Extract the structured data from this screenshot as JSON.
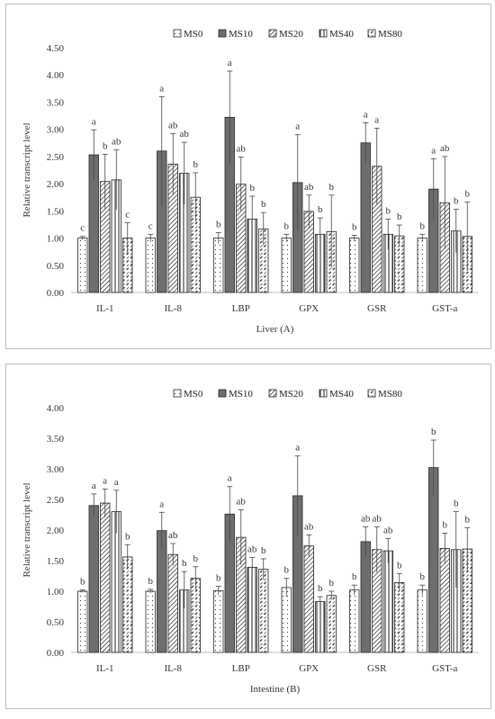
{
  "legend": [
    "MS0",
    "MS10",
    "MS20",
    "MS40",
    "MS80"
  ],
  "chart_data": [
    {
      "type": "bar",
      "title": "",
      "xlabel": "Liver (A)",
      "ylabel": "Relative transcript level",
      "ylim": [
        0,
        4.5
      ],
      "ytick_step": 0.5,
      "ytick_labels": [
        "0.00",
        "0.50",
        "1.00",
        "1.50",
        "2.00",
        "2.50",
        "3.00",
        "3.50",
        "4.00",
        "4.50"
      ],
      "grid": false,
      "legend_position": "top",
      "categories": [
        "IL-1",
        "IL-8",
        "LBP",
        "GPX",
        "GSR",
        "GST-a"
      ],
      "series": [
        {
          "name": "MS0",
          "values": [
            1.0,
            1.0,
            1.0,
            1.0,
            1.0,
            1.0
          ],
          "errors": [
            0.03,
            0.07,
            0.1,
            0.07,
            0.05,
            0.07
          ],
          "letters": [
            "c",
            "c",
            "b",
            "b",
            "b",
            "b"
          ]
        },
        {
          "name": "MS10",
          "values": [
            2.53,
            2.6,
            3.22,
            2.02,
            2.75,
            1.9
          ],
          "errors": [
            0.46,
            1.0,
            0.85,
            0.88,
            0.37,
            0.56
          ],
          "letters": [
            "a",
            "a",
            "a",
            "a",
            "a",
            "a"
          ]
        },
        {
          "name": "MS20",
          "values": [
            2.04,
            2.36,
            1.99,
            1.49,
            2.32,
            1.65
          ],
          "errors": [
            0.5,
            0.56,
            0.5,
            0.3,
            0.7,
            0.85
          ],
          "letters": [
            "b",
            "ab",
            "ab",
            "ab",
            "a",
            "ab"
          ]
        },
        {
          "name": "MS40",
          "values": [
            2.07,
            2.19,
            1.35,
            1.07,
            1.07,
            1.13
          ],
          "errors": [
            0.55,
            0.57,
            0.42,
            0.3,
            0.28,
            0.4
          ],
          "letters": [
            "ab",
            "ab",
            "b",
            "b",
            "b",
            "b"
          ]
        },
        {
          "name": "MS80",
          "values": [
            1.0,
            1.75,
            1.17,
            1.12,
            1.04,
            1.03
          ],
          "errors": [
            0.28,
            0.45,
            0.3,
            0.67,
            0.2,
            0.63
          ],
          "letters": [
            "c",
            "b",
            "b",
            "b",
            "b",
            "b"
          ]
        }
      ]
    },
    {
      "type": "bar",
      "title": "",
      "xlabel": "Intestine (B)",
      "ylabel": "Relative transcript level",
      "ylim": [
        0,
        4.0
      ],
      "ytick_step": 0.5,
      "ytick_labels": [
        "0.00",
        "0.50",
        "1.00",
        "1.50",
        "2.00",
        "2.50",
        "3.00",
        "3.50",
        "4.00"
      ],
      "grid": false,
      "legend_position": "top",
      "categories": [
        "IL-1",
        "IL-8",
        "LBP",
        "GPX",
        "GSR",
        "GST-a"
      ],
      "series": [
        {
          "name": "MS0",
          "values": [
            1.0,
            1.0,
            1.01,
            1.06,
            1.02,
            1.02
          ],
          "errors": [
            0.02,
            0.03,
            0.07,
            0.15,
            0.08,
            0.08
          ],
          "letters": [
            "b",
            "b",
            "b",
            "b",
            "b",
            "b"
          ]
        },
        {
          "name": "MS10",
          "values": [
            2.4,
            1.99,
            2.26,
            2.56,
            1.81,
            3.02
          ],
          "errors": [
            0.19,
            0.3,
            0.45,
            0.65,
            0.24,
            0.45
          ],
          "letters": [
            "a",
            "a",
            "a",
            "a",
            "ab",
            "b"
          ]
        },
        {
          "name": "MS20",
          "values": [
            2.44,
            1.6,
            1.88,
            1.74,
            1.68,
            1.7
          ],
          "errors": [
            0.23,
            0.18,
            0.45,
            0.18,
            0.37,
            0.25
          ],
          "letters": [
            "a",
            "ab",
            "ab",
            "ab",
            "ab",
            "b"
          ]
        },
        {
          "name": "MS40",
          "values": [
            2.3,
            1.02,
            1.39,
            0.83,
            1.66,
            1.68
          ],
          "errors": [
            0.35,
            0.3,
            0.16,
            0.08,
            0.2,
            0.62
          ],
          "letters": [
            "a",
            "b",
            "ab",
            "b",
            "ab",
            "b"
          ]
        },
        {
          "name": "MS80",
          "values": [
            1.56,
            1.21,
            1.36,
            0.93,
            1.14,
            1.69
          ],
          "errors": [
            0.2,
            0.19,
            0.17,
            0.07,
            0.15,
            0.35
          ],
          "letters": [
            "b",
            "b",
            "b",
            "b",
            "b",
            "b"
          ]
        }
      ]
    }
  ]
}
